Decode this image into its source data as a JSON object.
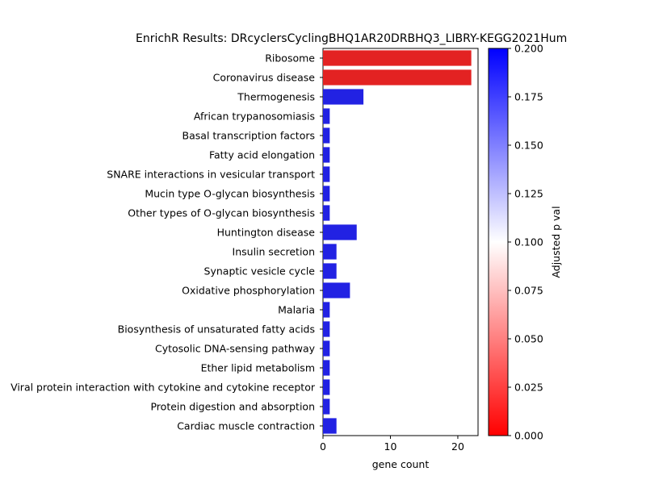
{
  "chart_data": {
    "type": "bar",
    "orientation": "horizontal",
    "title": "EnrichR Results: DRcyclersCyclingBHQ1AR20DRBHQ3_LIBRY-KEGG2021Hum",
    "xlabel": "gene count",
    "ylabel": "",
    "xlim": [
      0,
      23
    ],
    "x_ticks": [
      0,
      10,
      20
    ],
    "x_tick_labels": [
      "0",
      "10",
      "20"
    ],
    "grid": false,
    "categories": [
      "Ribosome",
      "Coronavirus disease",
      "Thermogenesis",
      "African trypanosomiasis",
      "Basal transcription factors",
      "Fatty acid elongation",
      "SNARE interactions in vesicular transport",
      "Mucin type O-glycan biosynthesis",
      "Other types of O-glycan biosynthesis",
      "Huntington disease",
      "Insulin secretion",
      "Synaptic vesicle cycle",
      "Oxidative phosphorylation",
      "Malaria",
      "Biosynthesis of unsaturated fatty acids",
      "Cytosolic DNA-sensing pathway",
      "Ether lipid metabolism",
      "Viral protein interaction with cytokine and cytokine receptor",
      "Protein digestion and absorption",
      "Cardiac muscle contraction"
    ],
    "values": [
      22,
      22,
      6,
      1,
      1,
      1,
      1,
      1,
      1,
      5,
      2,
      2,
      4,
      1,
      1,
      1,
      1,
      1,
      1,
      2
    ],
    "adjusted_p_val_color": [
      0.0,
      0.0,
      0.2,
      0.2,
      0.2,
      0.2,
      0.2,
      0.2,
      0.2,
      0.2,
      0.2,
      0.2,
      0.2,
      0.2,
      0.2,
      0.2,
      0.2,
      0.2,
      0.2,
      0.2
    ],
    "colorbar": {
      "label": "Adjusted p val",
      "range": [
        0.0,
        0.2
      ],
      "ticks": [
        "0.000",
        "0.025",
        "0.050",
        "0.075",
        "0.100",
        "0.125",
        "0.150",
        "0.175",
        "0.200"
      ],
      "colors": {
        "low": "#ff0000",
        "mid": "#ffffff",
        "high": "#0000ff"
      }
    },
    "bar_colors": {
      "red": "#e32222",
      "blue": "#2222e3"
    }
  }
}
